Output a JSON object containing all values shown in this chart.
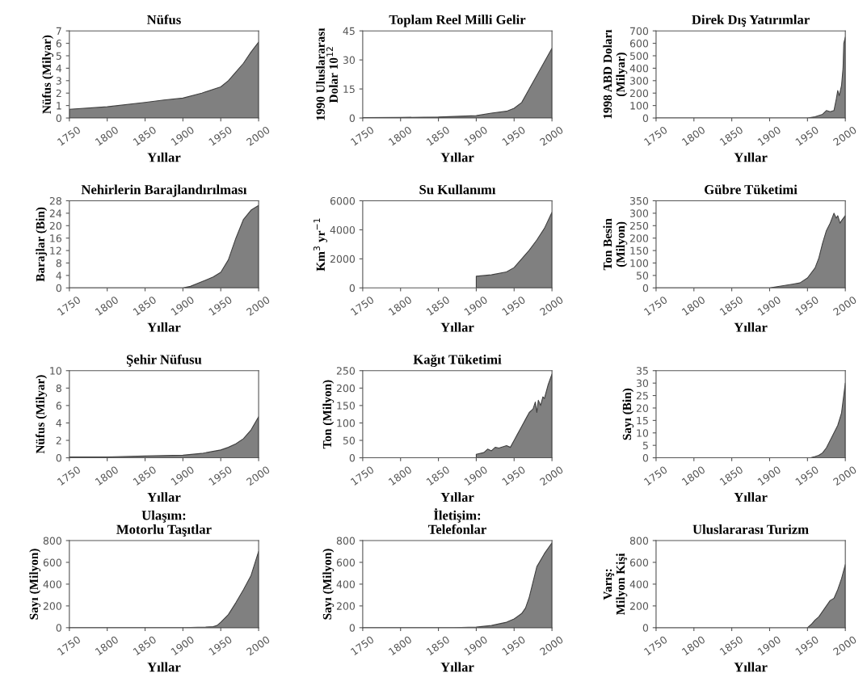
{
  "chart_data": [
    {
      "type": "area",
      "title": "Nüfus",
      "ylabel": "Nüfus (Milyar)",
      "xlabel": "Yıllar",
      "x": [
        1750,
        1800,
        1850,
        1875,
        1900,
        1925,
        1950,
        1960,
        1970,
        1980,
        1990,
        2000
      ],
      "values": [
        0.7,
        0.9,
        1.25,
        1.45,
        1.6,
        2.0,
        2.5,
        3.0,
        3.7,
        4.4,
        5.3,
        6.1
      ],
      "color": "#808080",
      "xlim": [
        1750,
        2000
      ],
      "xticks": [
        1750,
        1800,
        1850,
        1900,
        1950,
        2000
      ],
      "ylim": [
        0,
        7
      ],
      "yticks": [
        0,
        1,
        2,
        3,
        4,
        5,
        6,
        7
      ]
    },
    {
      "type": "area",
      "title": "Toplam Reel Milli Gelir",
      "ylabel": "1990 Uluslararası\nDolar 10$^{12}$",
      "xlabel": "Yıllar",
      "x": [
        1750,
        1800,
        1850,
        1900,
        1920,
        1940,
        1950,
        1960,
        1970,
        1980,
        1990,
        2000
      ],
      "values": [
        0.2,
        0.3,
        0.5,
        1.2,
        2.5,
        3.5,
        5,
        8,
        15,
        22,
        29,
        36
      ],
      "color": "#808080",
      "xlim": [
        1750,
        2000
      ],
      "xticks": [
        1750,
        1800,
        1850,
        1900,
        1950,
        2000
      ],
      "ylim": [
        0,
        45
      ],
      "yticks": [
        0,
        15,
        30,
        45
      ]
    },
    {
      "type": "area",
      "title": "Direk Dış Yatırımlar",
      "ylabel": "1998 ABD Doları\n(Milyar)",
      "xlabel": "Yıllar",
      "x": [
        1750,
        1950,
        1960,
        1970,
        1975,
        1980,
        1985,
        1988,
        1990,
        1992,
        1995,
        1997,
        1998,
        2000
      ],
      "values": [
        0,
        0,
        10,
        30,
        60,
        50,
        60,
        150,
        220,
        180,
        260,
        400,
        600,
        650
      ],
      "color": "#808080",
      "xlim": [
        1750,
        2000
      ],
      "xticks": [
        1750,
        1800,
        1850,
        1900,
        1950,
        2000
      ],
      "ylim": [
        0,
        700
      ],
      "yticks": [
        0,
        100,
        200,
        300,
        400,
        500,
        600,
        700
      ]
    },
    {
      "type": "area",
      "title": "Nehirlerin Barajlandırılması",
      "ylabel": "Barajlar (Bin)",
      "xlabel": "Yıllar",
      "x": [
        1750,
        1900,
        1910,
        1920,
        1930,
        1940,
        1950,
        1960,
        1970,
        1980,
        1990,
        2000
      ],
      "values": [
        0,
        0,
        0.5,
        1.5,
        2.5,
        3.5,
        5,
        9,
        16,
        22,
        25,
        26.5
      ],
      "color": "#808080",
      "xlim": [
        1750,
        2000
      ],
      "xticks": [
        1750,
        1800,
        1850,
        1900,
        1950,
        2000
      ],
      "ylim": [
        0,
        28
      ],
      "yticks": [
        0,
        4,
        8,
        12,
        16,
        20,
        24,
        28
      ]
    },
    {
      "type": "area",
      "title": "Su Kullanımı",
      "ylabel": "Km$^{3}$ yr$^{−1}$",
      "xlabel": "Yıllar",
      "x": [
        1900,
        1920,
        1940,
        1950,
        1960,
        1970,
        1980,
        1990,
        2000
      ],
      "values": [
        800,
        900,
        1100,
        1400,
        2000,
        2600,
        3300,
        4100,
        5200
      ],
      "color": "#808080",
      "xlim": [
        1750,
        2000
      ],
      "xticks": [
        1750,
        1800,
        1850,
        1900,
        1950,
        2000
      ],
      "ylim": [
        0,
        6000
      ],
      "yticks": [
        0,
        2000,
        4000,
        6000
      ]
    },
    {
      "type": "area",
      "title": "Gübre Tüketimi",
      "ylabel": "Ton Besin\n(Milyon)",
      "xlabel": "Yıllar",
      "x": [
        1750,
        1900,
        1920,
        1930,
        1940,
        1950,
        1960,
        1965,
        1970,
        1975,
        1980,
        1985,
        1988,
        1990,
        1993,
        1995,
        2000
      ],
      "values": [
        0,
        0,
        10,
        15,
        20,
        40,
        80,
        120,
        180,
        230,
        260,
        300,
        280,
        290,
        260,
        270,
        290
      ],
      "color": "#808080",
      "xlim": [
        1750,
        2000
      ],
      "xticks": [
        1750,
        1800,
        1850,
        1900,
        1950,
        2000
      ],
      "ylim": [
        0,
        350
      ],
      "yticks": [
        0,
        50,
        100,
        150,
        200,
        250,
        300,
        350
      ]
    },
    {
      "type": "area",
      "title": "Şehir Nüfusu",
      "ylabel": "Nüfus (Milyar)",
      "xlabel": "Yıllar",
      "x": [
        1750,
        1800,
        1850,
        1900,
        1925,
        1950,
        1960,
        1970,
        1980,
        1990,
        2000
      ],
      "values": [
        0.1,
        0.1,
        0.2,
        0.3,
        0.5,
        0.9,
        1.2,
        1.6,
        2.2,
        3.2,
        4.7
      ],
      "color": "#808080",
      "xlim": [
        1750,
        2000
      ],
      "xticks": [
        1750,
        1800,
        1850,
        1900,
        1950,
        2000
      ],
      "ylim": [
        0,
        10
      ],
      "yticks": [
        0,
        2,
        4,
        6,
        8,
        10
      ]
    },
    {
      "type": "area",
      "title": "Kağıt Tüketimi",
      "ylabel": "Ton (Milyon)",
      "xlabel": "Yıllar",
      "x": [
        1900,
        1910,
        1915,
        1920,
        1925,
        1930,
        1940,
        1945,
        1950,
        1955,
        1960,
        1965,
        1970,
        1975,
        1978,
        1980,
        1982,
        1985,
        1988,
        1990,
        1995,
        2000
      ],
      "values": [
        10,
        15,
        25,
        20,
        30,
        28,
        35,
        30,
        50,
        70,
        90,
        110,
        130,
        140,
        160,
        130,
        165,
        150,
        175,
        170,
        210,
        240
      ],
      "color": "#808080",
      "xlim": [
        1750,
        2000
      ],
      "xticks": [
        1750,
        1800,
        1850,
        1900,
        1950,
        2000
      ],
      "ylim": [
        0,
        250
      ],
      "yticks": [
        0,
        50,
        100,
        150,
        200,
        250
      ]
    },
    {
      "type": "area",
      "ylabel": "Sayı (Bin)",
      "xlabel": "Yıllar",
      "x": [
        1750,
        1950,
        1955,
        1960,
        1965,
        1970,
        1975,
        1980,
        1985,
        1990,
        1995,
        2000
      ],
      "values": [
        0,
        0,
        0.1,
        0.5,
        1,
        2,
        4,
        7,
        10,
        13,
        18,
        30
      ],
      "color": "#808080",
      "xlim": [
        1750,
        2000
      ],
      "xticks": [
        1750,
        1800,
        1850,
        1900,
        1950,
        2000
      ],
      "ylim": [
        0,
        35
      ],
      "yticks": [
        0,
        5,
        10,
        15,
        20,
        25,
        30,
        35
      ]
    },
    {
      "type": "area",
      "title": "Ulaşım:\nMotorlu Taşıtlar",
      "ylabel": "Sayı (Milyon)",
      "xlabel": "Yıllar",
      "x": [
        1750,
        1900,
        1930,
        1940,
        1945,
        1950,
        1960,
        1970,
        1980,
        1990,
        2000
      ],
      "values": [
        0,
        0,
        5,
        10,
        20,
        50,
        120,
        230,
        350,
        480,
        700
      ],
      "color": "#808080",
      "xlim": [
        1750,
        2000
      ],
      "xticks": [
        1750,
        1800,
        1850,
        1900,
        1950,
        2000
      ],
      "ylim": [
        0,
        800
      ],
      "yticks": [
        0,
        200,
        400,
        600,
        800
      ]
    },
    {
      "type": "area",
      "title": "İletişim:\nTelefonlar",
      "ylabel": "Sayı (Milyon)",
      "xlabel": "Yıllar",
      "x": [
        1750,
        1870,
        1900,
        1920,
        1940,
        1950,
        1960,
        1965,
        1970,
        1975,
        1980,
        1990,
        2000
      ],
      "values": [
        0,
        0,
        5,
        20,
        50,
        80,
        130,
        180,
        280,
        420,
        560,
        680,
        780
      ],
      "color": "#808080",
      "xlim": [
        1750,
        2000
      ],
      "xticks": [
        1750,
        1800,
        1850,
        1900,
        1950,
        2000
      ],
      "ylim": [
        0,
        800
      ],
      "yticks": [
        0,
        200,
        400,
        600,
        800
      ]
    },
    {
      "type": "area",
      "title": "Uluslararası Turizm",
      "ylabel": "Varış:\nMilyon Kişi",
      "xlabel": "Yıllar",
      "x": [
        1950,
        1955,
        1960,
        1965,
        1970,
        1975,
        1980,
        1985,
        1990,
        1995,
        2000
      ],
      "values": [
        0,
        30,
        70,
        100,
        150,
        200,
        250,
        270,
        350,
        450,
        580
      ],
      "color": "#808080",
      "xlim": [
        1750,
        2000
      ],
      "xticks": [
        1750,
        1800,
        1850,
        1900,
        1950,
        2000
      ],
      "ylim": [
        0,
        800
      ],
      "yticks": [
        0,
        200,
        400,
        600,
        800
      ]
    }
  ]
}
